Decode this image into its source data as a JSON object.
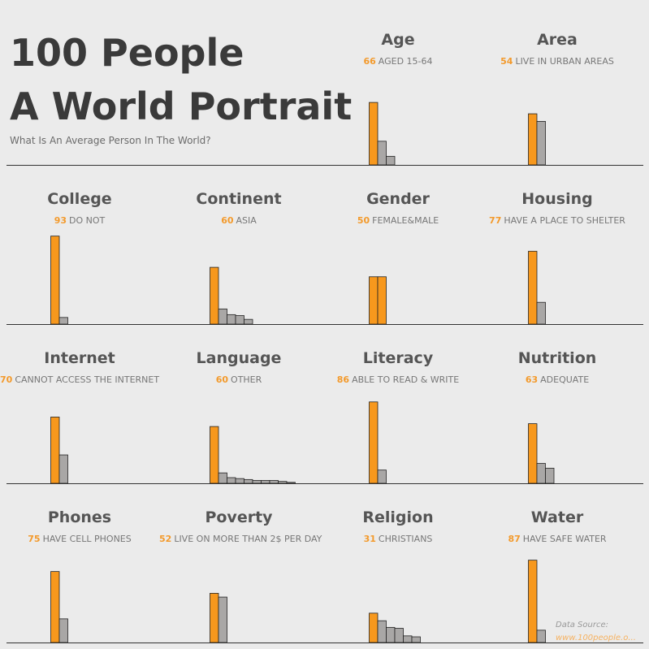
{
  "header": {
    "title_line1": "100 People",
    "title_line2": "A World Portrait",
    "subtitle": "What Is An Average Person In The World?"
  },
  "source": {
    "label": "Data Source:",
    "link": "www.100people.o..."
  },
  "colors": {
    "highlight": "#f7981d",
    "other": "#a9a7a6",
    "text_accent": "#f39a2c"
  },
  "chart_data": [
    {
      "type": "bar",
      "title": "Age",
      "highlight_value": "66",
      "highlight_label": "AGED 15-64",
      "values": [
        66,
        25,
        9
      ],
      "ylim": [
        0,
        100
      ]
    },
    {
      "type": "bar",
      "title": "Area",
      "highlight_value": "54",
      "highlight_label": "LIVE IN URBAN AREAS",
      "values": [
        54,
        46
      ],
      "ylim": [
        0,
        100
      ]
    },
    {
      "type": "bar",
      "title": "College",
      "highlight_value": "93",
      "highlight_label": "DO NOT",
      "values": [
        93,
        7
      ],
      "ylim": [
        0,
        100
      ]
    },
    {
      "type": "bar",
      "title": "Continent",
      "highlight_value": "60",
      "highlight_label": "ASIA",
      "values": [
        60,
        16,
        10,
        9,
        5
      ],
      "ylim": [
        0,
        100
      ]
    },
    {
      "type": "bar",
      "title": "Gender",
      "highlight_value": "50",
      "highlight_label": "FEMALE&MALE",
      "values": [
        50,
        50
      ],
      "all_highlight": true,
      "ylim": [
        0,
        100
      ]
    },
    {
      "type": "bar",
      "title": "Housing",
      "highlight_value": "77",
      "highlight_label": "HAVE A PLACE TO SHELTER",
      "values": [
        77,
        23
      ],
      "ylim": [
        0,
        100
      ]
    },
    {
      "type": "bar",
      "title": "Internet",
      "highlight_value": "70",
      "highlight_label": "CANNOT ACCESS THE INTERNET",
      "values": [
        70,
        30
      ],
      "ylim": [
        0,
        100
      ]
    },
    {
      "type": "bar",
      "title": "Language",
      "highlight_value": "60",
      "highlight_label": "OTHER",
      "values": [
        60,
        11,
        6,
        5,
        4,
        3,
        3,
        3,
        2,
        1
      ],
      "ylim": [
        0,
        100
      ]
    },
    {
      "type": "bar",
      "title": "Literacy",
      "highlight_value": "86",
      "highlight_label": "ABLE TO READ & WRITE",
      "values": [
        86,
        14
      ],
      "ylim": [
        0,
        100
      ]
    },
    {
      "type": "bar",
      "title": "Nutrition",
      "highlight_value": "63",
      "highlight_label": "ADEQUATE",
      "values": [
        63,
        21,
        16
      ],
      "ylim": [
        0,
        100
      ]
    },
    {
      "type": "bar",
      "title": "Phones",
      "highlight_value": "75",
      "highlight_label": "HAVE CELL PHONES",
      "values": [
        75,
        25
      ],
      "ylim": [
        0,
        100
      ]
    },
    {
      "type": "bar",
      "title": "Poverty",
      "highlight_value": "52",
      "highlight_label": "LIVE ON MORE THAN 2$ PER DAY",
      "values": [
        52,
        48
      ],
      "ylim": [
        0,
        100
      ]
    },
    {
      "type": "bar",
      "title": "Religion",
      "highlight_value": "31",
      "highlight_label": "CHRISTIANS",
      "values": [
        31,
        23,
        16,
        15,
        7,
        6
      ],
      "ylim": [
        0,
        100
      ]
    },
    {
      "type": "bar",
      "title": "Water",
      "highlight_value": "87",
      "highlight_label": "HAVE SAFE WATER",
      "values": [
        87,
        13
      ],
      "ylim": [
        0,
        100
      ]
    }
  ]
}
